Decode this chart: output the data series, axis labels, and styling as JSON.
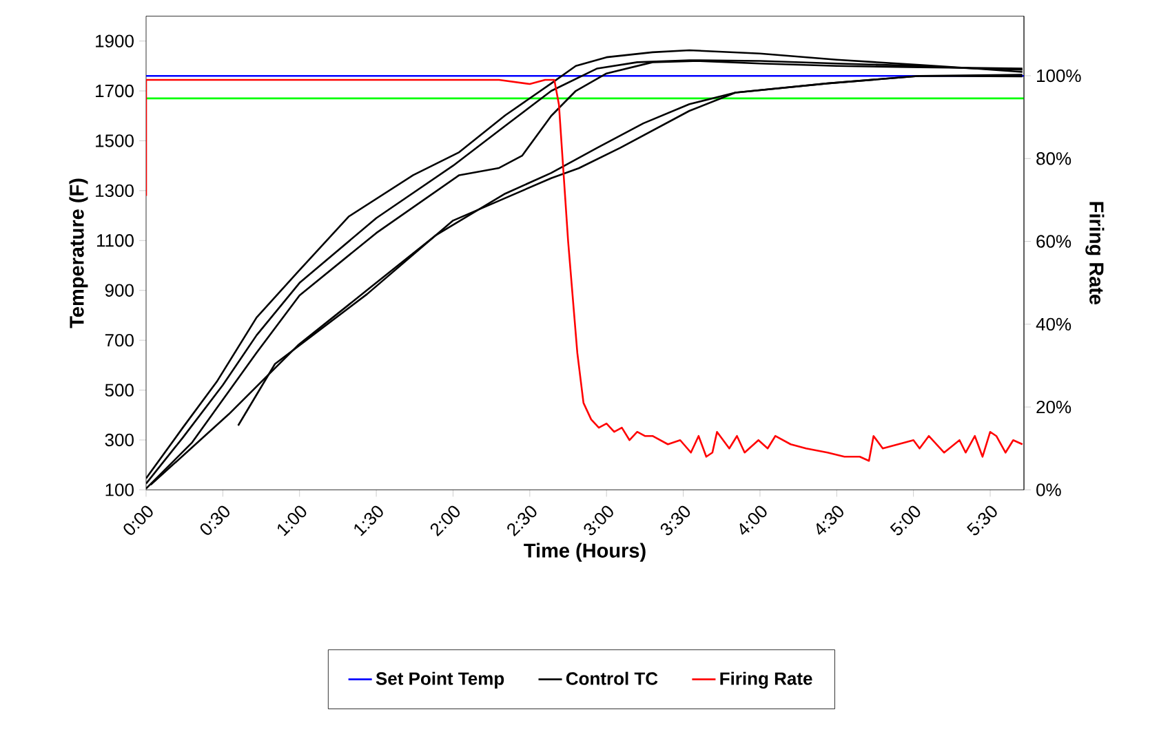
{
  "chart_data": {
    "type": "line",
    "xlabel": "Time   (Hours)",
    "ylabel": "Temperature (F)",
    "y2label": "Firing Rate",
    "xlim": [
      0,
      5.72
    ],
    "ylim": [
      100,
      2000
    ],
    "y2lim": [
      0,
      114.4
    ],
    "xticks": [
      {
        "value": 0,
        "label": "0:00"
      },
      {
        "value": 0.5,
        "label": "0:30"
      },
      {
        "value": 1,
        "label": "1:00"
      },
      {
        "value": 1.5,
        "label": "1:30"
      },
      {
        "value": 2,
        "label": "2:00"
      },
      {
        "value": 2.5,
        "label": "2:30"
      },
      {
        "value": 3,
        "label": "3:00"
      },
      {
        "value": 3.5,
        "label": "3:30"
      },
      {
        "value": 4,
        "label": "4:00"
      },
      {
        "value": 4.5,
        "label": "4:30"
      },
      {
        "value": 5,
        "label": "5:00"
      },
      {
        "value": 5.5,
        "label": "5:30"
      }
    ],
    "yticks": [
      100,
      300,
      500,
      700,
      900,
      1100,
      1300,
      1500,
      1700,
      1900
    ],
    "y2ticks": [
      {
        "value": 0,
        "label": "0%"
      },
      {
        "value": 20,
        "label": "20%"
      },
      {
        "value": 40,
        "label": "40%"
      },
      {
        "value": 60,
        "label": "60%"
      },
      {
        "value": 80,
        "label": "80%"
      },
      {
        "value": 100,
        "label": "100%"
      }
    ],
    "legend": "bottom",
    "ref_lines": [
      {
        "axis": "y",
        "value": 1670,
        "color": "#00ff00"
      }
    ],
    "series": [
      {
        "name": "Set Point Temp",
        "color": "#0000ff",
        "x": [
          0,
          5.72
        ],
        "values": [
          1760,
          1760
        ]
      },
      {
        "name": "Control TC",
        "color": "#000000",
        "x": [
          0,
          0.24,
          0.46,
          0.72,
          0.99,
          1.32,
          1.74,
          2.04,
          2.34,
          2.64,
          2.8,
          3.0,
          3.3,
          3.54,
          4.0,
          4.5,
          5.04,
          5.4,
          5.71
        ],
        "values": [
          146,
          350,
          533,
          791,
          975,
          1196,
          1362,
          1454,
          1602,
          1730,
          1800,
          1835,
          1855,
          1863,
          1850,
          1825,
          1804,
          1790,
          1776
        ]
      },
      {
        "color": "#000000",
        "x": [
          0,
          0.24,
          0.5,
          0.72,
          1.0,
          1.5,
          2.0,
          2.34,
          2.64,
          2.94,
          3.2,
          3.54,
          4.0,
          4.5,
          5.04,
          5.4,
          5.71
        ],
        "values": [
          125,
          310,
          520,
          720,
          930,
          1190,
          1400,
          1560,
          1700,
          1790,
          1815,
          1823,
          1820,
          1810,
          1800,
          1790,
          1785
        ]
      },
      {
        "color": "#000000",
        "x": [
          0,
          0.3,
          0.72,
          1.0,
          1.5,
          2.04,
          2.3,
          2.45,
          2.64,
          2.8,
          3.0,
          3.3,
          3.6,
          4.0,
          4.5,
          5.04,
          5.71
        ],
        "values": [
          105,
          290,
          650,
          880,
          1130,
          1362,
          1391,
          1440,
          1600,
          1700,
          1770,
          1815,
          1820,
          1810,
          1800,
          1795,
          1790
        ]
      },
      {
        "color": "#000000",
        "x": [
          0.03,
          0.54,
          0.99,
          1.44,
          1.89,
          2.34,
          2.64,
          2.94,
          3.24,
          3.54,
          3.84,
          4.44,
          5.04,
          5.71
        ],
        "values": [
          120,
          404,
          680,
          901,
          1122,
          1288,
          1371,
          1472,
          1570,
          1647,
          1693,
          1730,
          1760,
          1758
        ]
      },
      {
        "color": "#000000",
        "x": [
          0.6,
          0.84,
          1.44,
          2.0,
          2.64,
          2.82,
          3.09,
          3.54,
          3.84,
          4.44,
          5.04,
          5.71
        ],
        "values": [
          358,
          605,
          885,
          1180,
          1350,
          1390,
          1472,
          1620,
          1693,
          1730,
          1760,
          1765
        ]
      },
      {
        "name": "Firing Rate",
        "color": "#ff0000",
        "axis": "y2",
        "x": [
          0,
          0,
          0.3,
          0.8,
          1.5,
          2.0,
          2.3,
          2.5,
          2.6,
          2.66,
          2.69,
          2.75,
          2.81,
          2.85,
          2.9,
          2.95,
          3.0,
          3.05,
          3.1,
          3.15,
          3.2,
          3.25,
          3.3,
          3.4,
          3.48,
          3.55,
          3.6,
          3.65,
          3.69,
          3.72,
          3.8,
          3.85,
          3.9,
          3.99,
          4.05,
          4.1,
          4.2,
          4.3,
          4.44,
          4.55,
          4.65,
          4.71,
          4.74,
          4.8,
          4.9,
          5.0,
          5.04,
          5.1,
          5.2,
          5.3,
          5.34,
          5.4,
          5.45,
          5.5,
          5.54,
          5.6,
          5.65,
          5.71
        ],
        "values": [
          71,
          99,
          99,
          99,
          99,
          99,
          99,
          98,
          99,
          99,
          93,
          60,
          33,
          21,
          17,
          15,
          16,
          14,
          15,
          12,
          14,
          13,
          13,
          11,
          12,
          9,
          13,
          8,
          9,
          14,
          10,
          13,
          9,
          12,
          10,
          13,
          11,
          10,
          9,
          8,
          8,
          7,
          13,
          10,
          11,
          12,
          10,
          13,
          9,
          12,
          9,
          13,
          8,
          14,
          13,
          9,
          12,
          11
        ]
      }
    ]
  }
}
